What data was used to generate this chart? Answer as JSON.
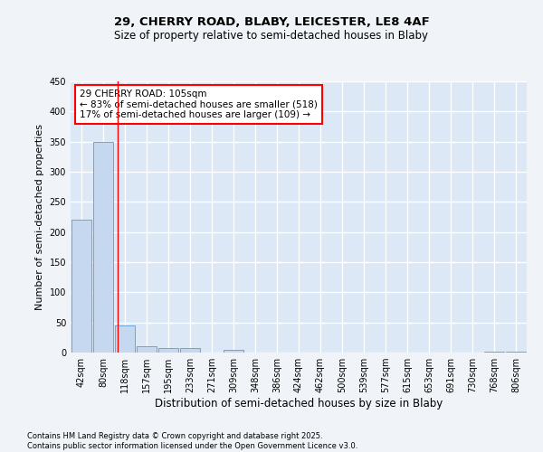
{
  "title1": "29, CHERRY ROAD, BLABY, LEICESTER, LE8 4AF",
  "title2": "Size of property relative to semi-detached houses in Blaby",
  "xlabel": "Distribution of semi-detached houses by size in Blaby",
  "ylabel": "Number of semi-detached properties",
  "categories": [
    "42sqm",
    "80sqm",
    "118sqm",
    "157sqm",
    "195sqm",
    "233sqm",
    "271sqm",
    "309sqm",
    "348sqm",
    "386sqm",
    "424sqm",
    "462sqm",
    "500sqm",
    "539sqm",
    "577sqm",
    "615sqm",
    "653sqm",
    "691sqm",
    "730sqm",
    "768sqm",
    "806sqm"
  ],
  "values": [
    220,
    350,
    45,
    10,
    8,
    7,
    0,
    4,
    0,
    0,
    0,
    0,
    0,
    0,
    0,
    0,
    0,
    0,
    0,
    2,
    1
  ],
  "bar_color": "#c5d8f0",
  "bar_edge_color": "#5a9bd5",
  "annotation_text": "29 CHERRY ROAD: 105sqm\n← 83% of semi-detached houses are smaller (518)\n17% of semi-detached houses are larger (109) →",
  "ylim": [
    0,
    450
  ],
  "yticks": [
    0,
    50,
    100,
    150,
    200,
    250,
    300,
    350,
    400,
    450
  ],
  "bg_color": "#dce8f5",
  "grid_color": "#ffffff",
  "fig_bg_color": "#f0f4f8",
  "footer": "Contains HM Land Registry data © Crown copyright and database right 2025.\nContains public sector information licensed under the Open Government Licence v3.0.",
  "title1_fontsize": 9.5,
  "title2_fontsize": 8.5,
  "ylabel_fontsize": 8,
  "xlabel_fontsize": 8.5,
  "tick_fontsize": 7,
  "footer_fontsize": 6,
  "annot_fontsize": 7.5
}
